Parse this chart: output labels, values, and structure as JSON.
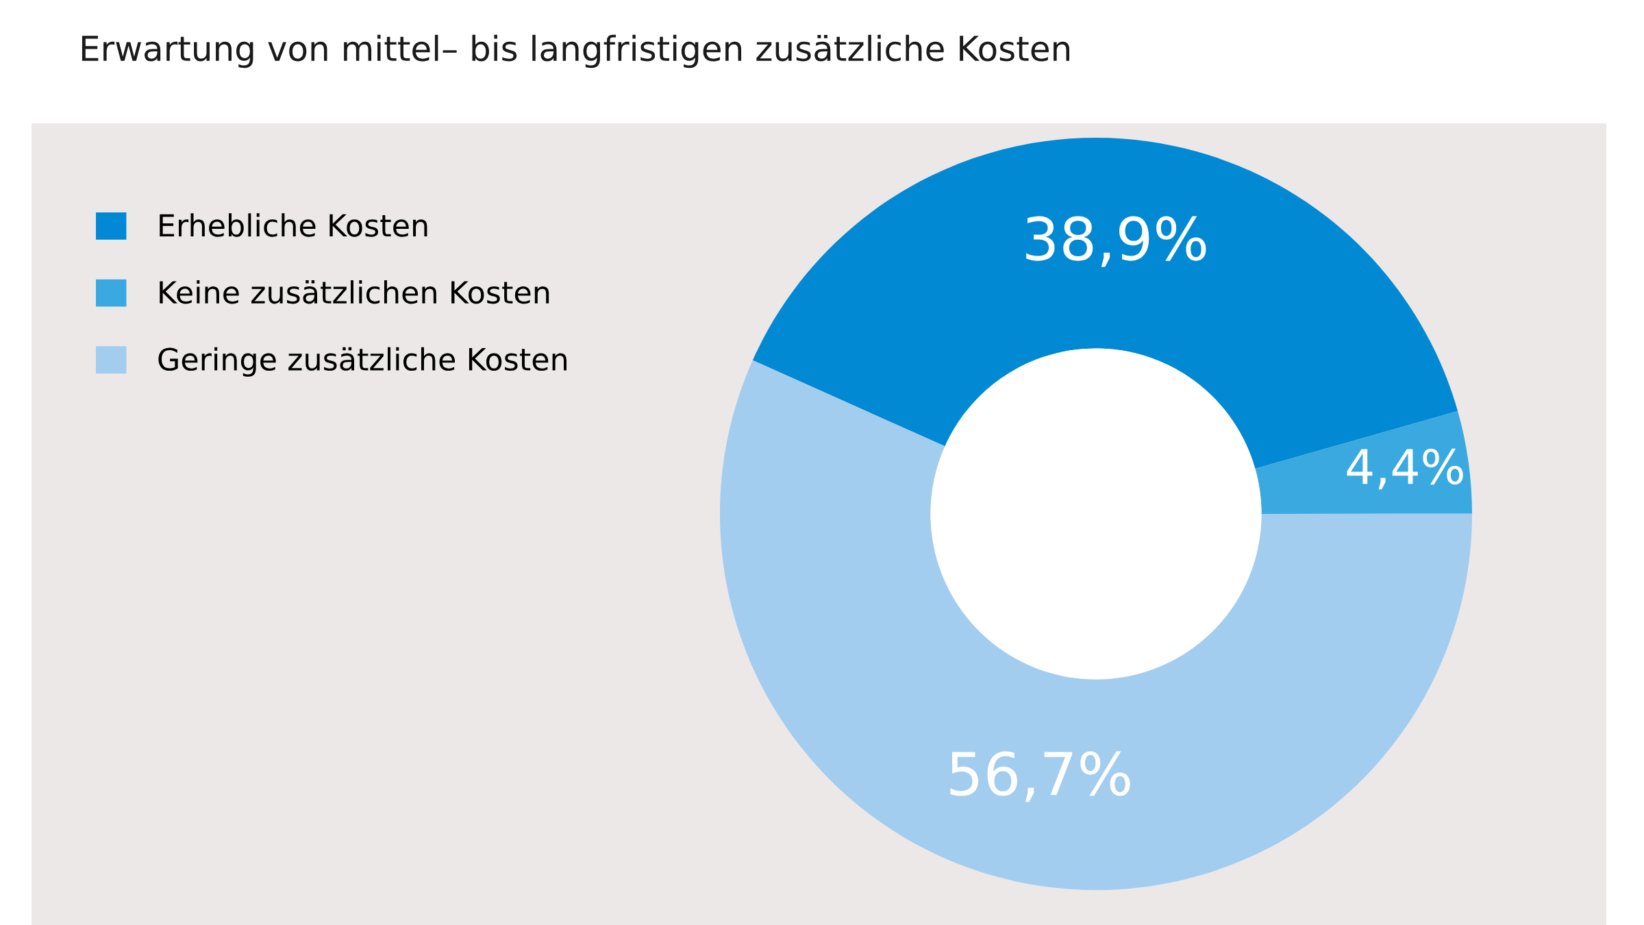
{
  "chart_data": {
    "type": "donut",
    "title": "Erwartung von mittel– bis langfristigen zusätzliche Kosten",
    "categories": [
      "Erhebliche Kosten",
      "Keine zusätzlichen Kosten",
      "Geringe zusätzliche Kosten"
    ],
    "values": [
      38.9,
      4.4,
      56.7
    ],
    "colors": [
      "#0289d4",
      "#3aa9e0",
      "#a3cdef"
    ],
    "value_labels": [
      "38,9%",
      "4,4%",
      "56,7%"
    ],
    "legend": "top left"
  }
}
